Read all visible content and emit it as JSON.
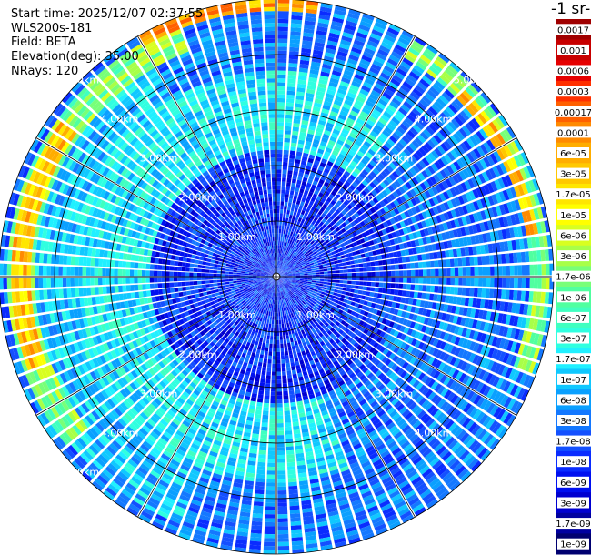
{
  "info": {
    "start_time": "Start time: 2025/12/07 02:37:55",
    "instrument": "WLS200s-181",
    "field": "Field: BETA",
    "elevation": "Elevation(deg): 35.00",
    "nrays": "NRays: 120"
  },
  "colorbar": {
    "title": "-1 sr-1",
    "labels": [
      "0.0017",
      "0.001",
      "0.0006",
      "0.0003",
      "0.00017",
      "0.0001",
      "6e-05",
      "3e-05",
      "1.7e-05",
      "1e-05",
      "6e-06",
      "3e-06",
      "1.7e-06",
      "1e-06",
      "6e-07",
      "3e-07",
      "1.7e-07",
      "1e-07",
      "6e-08",
      "3e-08",
      "1.7e-08",
      "1e-08",
      "6e-09",
      "3e-09",
      "1.7e-09",
      "1e-09"
    ],
    "colors": [
      "#a00000",
      "#c80000",
      "#e60000",
      "#ff3000",
      "#ff6000",
      "#ff8a00",
      "#ffad00",
      "#ffc800",
      "#ffe600",
      "#ffff00",
      "#d8ff20",
      "#a8ff48",
      "#78ff78",
      "#50ffa0",
      "#40ffc0",
      "#30ffe0",
      "#20f0ff",
      "#10c8ff",
      "#0aa0ff",
      "#1478ff",
      "#1450ff",
      "#0a2cff",
      "#0010f0",
      "#0000d0",
      "#0000a0",
      "#000070"
    ]
  },
  "chart_data": {
    "type": "heatmap",
    "projection": "polar-ppi",
    "field": "BETA",
    "elevation_deg": 35.0,
    "nrays": 120,
    "range_rings_km": [
      1,
      2,
      3,
      4,
      5
    ],
    "max_range_km": 5.0,
    "range_labels": [
      "1.00km",
      "2.00km",
      "3.00km",
      "4.00km",
      "5.00km"
    ],
    "azimuth_grid_deg": [
      0,
      30,
      60,
      90,
      120,
      150,
      180,
      210,
      240,
      270,
      300,
      330
    ],
    "colorscale": "log",
    "value_range": [
      1e-09,
      0.0017
    ],
    "features": [
      {
        "type": "background",
        "value": 3e-08
      },
      {
        "type": "near-field",
        "range_km": [
          0,
          2.3
        ],
        "value": 1e-08
      },
      {
        "type": "band",
        "range_km": [
          2.3,
          3.7
        ],
        "azimuth_deg": [
          160,
          400
        ],
        "value": 1.7e-07
      },
      {
        "type": "band",
        "range_km": [
          3.7,
          4.8
        ],
        "azimuth_deg": [
          200,
          330
        ],
        "value": 1e-07
      },
      {
        "type": "band",
        "range_km": [
          4.35,
          4.85
        ],
        "azimuth_deg": [
          230,
          340
        ],
        "value": 1.7e-06
      },
      {
        "type": "band",
        "range_km": [
          4.45,
          4.75
        ],
        "azimuth_deg": [
          250,
          305
        ],
        "value": 3e-05
      },
      {
        "type": "band",
        "range_km": [
          4.55,
          4.9
        ],
        "azimuth_deg": [
          30,
          110
        ],
        "value": 1.7e-06
      },
      {
        "type": "band",
        "range_km": [
          4.6,
          4.8
        ],
        "azimuth_deg": [
          45,
          80
        ],
        "value": 3e-05
      },
      {
        "type": "band",
        "range_km": [
          4.8,
          5.0
        ],
        "azimuth_deg": [
          330,
          370
        ],
        "value": 6e-05
      }
    ]
  }
}
